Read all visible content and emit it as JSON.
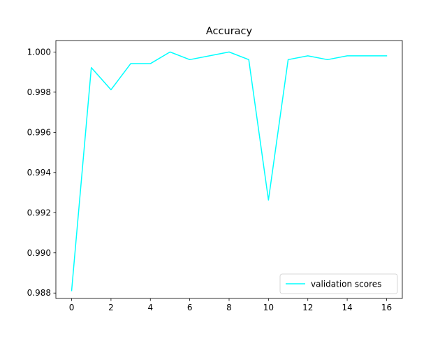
{
  "chart_data": {
    "type": "line",
    "title": "Accuracy",
    "xlabel": "",
    "ylabel": "",
    "x": [
      0,
      1,
      2,
      3,
      4,
      5,
      6,
      7,
      8,
      9,
      10,
      11,
      12,
      13,
      14,
      15,
      16
    ],
    "series": [
      {
        "name": "validation scores",
        "color": "#00ffff",
        "values": [
          0.98812,
          0.99922,
          0.99812,
          0.99942,
          0.99942,
          1.0,
          0.99962,
          0.99981,
          1.0,
          0.99962,
          0.99263,
          0.99962,
          0.99981,
          0.99962,
          0.99981,
          0.99981,
          0.99981
        ]
      }
    ],
    "xlim": [
      -0.8,
      16.8
    ],
    "ylim": [
      0.98773,
      1.00057
    ],
    "xticks": [
      0,
      2,
      4,
      6,
      8,
      10,
      12,
      14,
      16
    ],
    "xtick_labels": [
      "0",
      "2",
      "4",
      "6",
      "8",
      "10",
      "12",
      "14",
      "16"
    ],
    "yticks": [
      0.988,
      0.99,
      0.992,
      0.994,
      0.996,
      0.998,
      1.0
    ],
    "ytick_labels": [
      "0.988",
      "0.990",
      "0.992",
      "0.994",
      "0.996",
      "0.998",
      "1.000"
    ],
    "grid": false,
    "legend_position": "lower right"
  }
}
